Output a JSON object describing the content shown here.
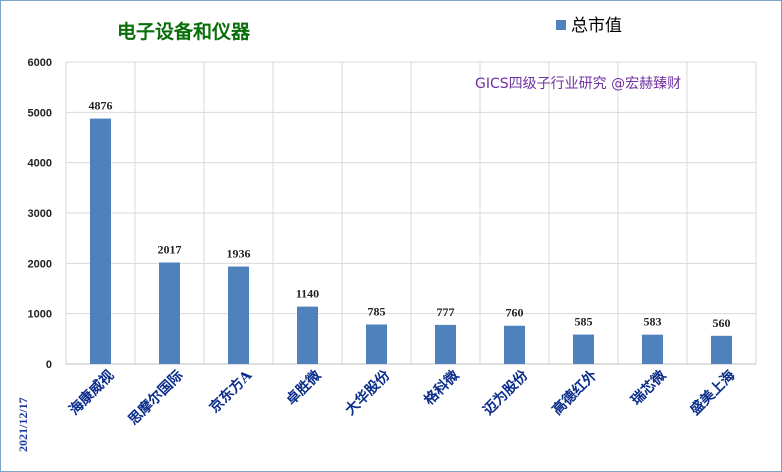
{
  "chart_data": {
    "type": "bar",
    "title": "电子设备和仪器",
    "annotation": "GICS四级子行业研究 @宏赫臻财",
    "date_label": "2021/12/17",
    "legend_position": "top-right",
    "grid": true,
    "ylim": [
      0,
      6000
    ],
    "yticks": [
      0,
      1000,
      2000,
      3000,
      4000,
      5000,
      6000
    ],
    "categories": [
      "海康威视",
      "思摩尔国际",
      "京东方A",
      "卓胜微",
      "大华股份",
      "格科微",
      "迈为股份",
      "高德红外",
      "瑞芯微",
      "盛美上海"
    ],
    "series": [
      {
        "name": "总市值",
        "color": "#4f81bd",
        "values": [
          4876,
          2017,
          1936,
          1140,
          785,
          777,
          760,
          585,
          583,
          560
        ]
      }
    ]
  }
}
